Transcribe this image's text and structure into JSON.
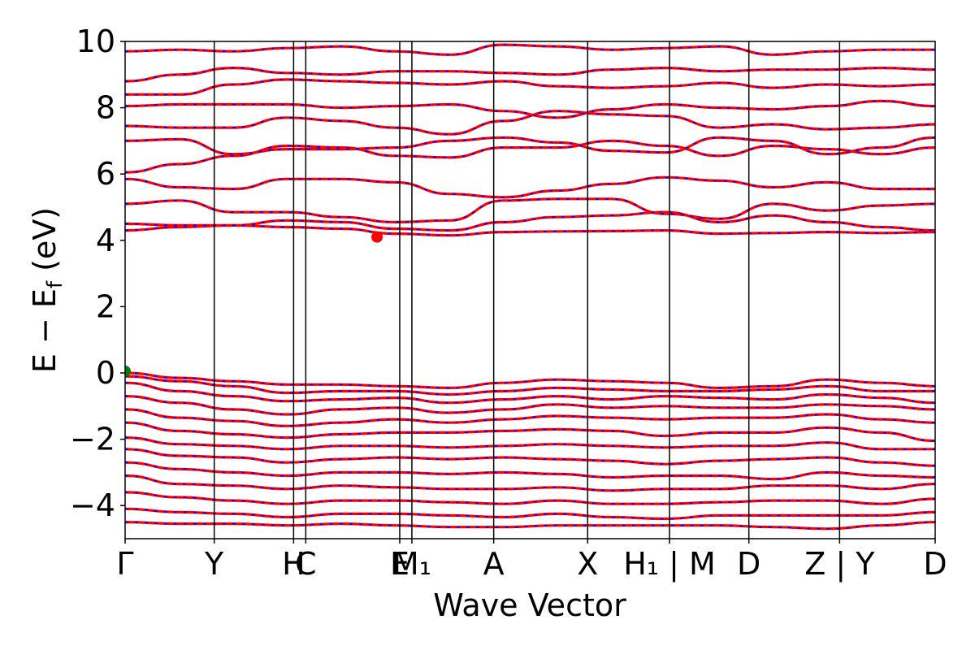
{
  "chart_data": {
    "type": "line",
    "title": "",
    "xlabel": "Wave Vector",
    "ylabel": "E − E_f (eV)",
    "ylabel_parts": {
      "main": "E − E",
      "sub": "f",
      "unit": " (eV)"
    },
    "ylim": [
      -5,
      10
    ],
    "yticks": [
      {
        "value": 10,
        "label": "10"
      },
      {
        "value": 8,
        "label": "8"
      },
      {
        "value": 6,
        "label": "6"
      },
      {
        "value": 4,
        "label": "4"
      },
      {
        "value": 2,
        "label": "2"
      },
      {
        "value": 0,
        "label": "0"
      },
      {
        "value": -2,
        "label": "−2"
      },
      {
        "value": -4,
        "label": "−4"
      }
    ],
    "xlim": [
      0,
      1
    ],
    "high_symmetry_points": [
      {
        "label": "Γ",
        "x": 0.0
      },
      {
        "label": "Y",
        "x": 0.11
      },
      {
        "label": "H",
        "x": 0.208
      },
      {
        "label": "C",
        "x": 0.223
      },
      {
        "label": "E",
        "x": 0.339
      },
      {
        "label": "M₁",
        "x": 0.354
      },
      {
        "label": "A",
        "x": 0.455
      },
      {
        "label": "X",
        "x": 0.571
      },
      {
        "label": "H₁ | M",
        "x": 0.672
      },
      {
        "label": "D",
        "x": 0.77
      },
      {
        "label": "Z | Y",
        "x": 0.882
      },
      {
        "label": "D",
        "x": 1.0
      }
    ],
    "grid": false,
    "series_colors": {
      "band": "#ff0000",
      "dash": "#0000ff"
    },
    "markers": [
      {
        "x": 0.0,
        "y": 0.05,
        "color": "#008000"
      },
      {
        "x": 0.311,
        "y": 4.1,
        "color": "#ff0000"
      }
    ],
    "conduction_bands": [
      [
        4.3,
        4.4,
        4.45,
        4.4,
        4.35,
        4.2,
        4.15,
        4.25,
        4.27,
        4.28,
        4.3,
        4.2,
        4.22,
        4.25,
        4.22,
        4.25
      ],
      [
        4.5,
        4.45,
        4.45,
        4.6,
        4.55,
        4.35,
        4.3,
        4.55,
        4.7,
        4.75,
        4.85,
        4.55,
        4.75,
        4.55,
        4.4,
        4.3
      ],
      [
        5.1,
        5.2,
        4.85,
        4.85,
        4.7,
        4.55,
        4.6,
        5.2,
        5.25,
        5.25,
        4.8,
        4.65,
        5.1,
        4.9,
        5.05,
        5.1
      ],
      [
        5.85,
        5.6,
        5.55,
        5.85,
        5.85,
        5.75,
        5.4,
        5.3,
        5.5,
        5.7,
        5.9,
        5.8,
        5.6,
        5.75,
        5.55,
        5.55
      ],
      [
        6.05,
        6.3,
        6.55,
        6.85,
        6.8,
        6.55,
        6.5,
        6.8,
        6.8,
        7.0,
        6.85,
        6.55,
        6.85,
        6.75,
        6.6,
        6.8
      ],
      [
        7.0,
        7.05,
        6.6,
        6.75,
        6.75,
        6.8,
        7.0,
        7.1,
        6.95,
        6.7,
        6.65,
        7.1,
        7.0,
        6.6,
        6.8,
        7.1
      ],
      [
        7.45,
        7.4,
        7.4,
        7.7,
        7.6,
        7.4,
        7.2,
        7.6,
        7.9,
        7.8,
        7.75,
        7.4,
        7.5,
        7.35,
        7.4,
        7.5
      ],
      [
        8.05,
        8.1,
        8.1,
        8.1,
        8.0,
        8.05,
        8.1,
        7.9,
        7.7,
        7.95,
        8.1,
        8.0,
        7.95,
        8.05,
        8.2,
        8.05
      ],
      [
        8.4,
        8.4,
        8.7,
        8.85,
        8.8,
        8.75,
        8.7,
        8.8,
        8.65,
        8.6,
        8.65,
        8.75,
        8.6,
        8.7,
        8.65,
        8.7
      ],
      [
        8.8,
        9.0,
        9.2,
        9.05,
        9.0,
        9.1,
        9.1,
        9.05,
        9.0,
        9.15,
        9.2,
        9.1,
        9.15,
        9.15,
        9.2,
        9.15
      ],
      [
        9.7,
        9.75,
        9.7,
        9.8,
        9.85,
        9.7,
        9.6,
        9.9,
        9.85,
        9.75,
        9.8,
        9.85,
        9.6,
        9.7,
        9.75,
        9.75
      ]
    ],
    "valence_bands": [
      [
        0.0,
        -0.15,
        -0.25,
        -0.35,
        -0.35,
        -0.4,
        -0.45,
        -0.3,
        -0.2,
        -0.25,
        -0.3,
        -0.45,
        -0.4,
        -0.2,
        -0.3,
        -0.4
      ],
      [
        -0.1,
        -0.25,
        -0.4,
        -0.6,
        -0.55,
        -0.55,
        -0.65,
        -0.55,
        -0.45,
        -0.5,
        -0.55,
        -0.55,
        -0.5,
        -0.4,
        -0.55,
        -0.55
      ],
      [
        -0.3,
        -0.55,
        -0.7,
        -0.85,
        -0.8,
        -0.75,
        -0.9,
        -0.8,
        -0.7,
        -0.8,
        -0.7,
        -0.75,
        -0.8,
        -0.65,
        -0.75,
        -0.9
      ],
      [
        -0.7,
        -0.9,
        -1.1,
        -1.25,
        -1.1,
        -1.05,
        -1.2,
        -1.1,
        -0.95,
        -1.05,
        -1.0,
        -1.05,
        -1.05,
        -0.95,
        -1.0,
        -1.1
      ],
      [
        -1.1,
        -1.35,
        -1.45,
        -1.6,
        -1.5,
        -1.4,
        -1.5,
        -1.4,
        -1.3,
        -1.35,
        -1.4,
        -1.35,
        -1.35,
        -1.25,
        -1.4,
        -1.5
      ],
      [
        -1.5,
        -1.75,
        -1.85,
        -1.95,
        -1.85,
        -1.8,
        -1.8,
        -1.75,
        -1.7,
        -1.75,
        -1.9,
        -1.8,
        -1.8,
        -1.65,
        -1.8,
        -2.05
      ],
      [
        -1.95,
        -2.15,
        -2.2,
        -2.3,
        -2.2,
        -2.2,
        -2.25,
        -2.2,
        -2.15,
        -2.2,
        -2.25,
        -2.2,
        -2.2,
        -2.1,
        -2.3,
        -2.3
      ],
      [
        -2.3,
        -2.5,
        -2.55,
        -2.7,
        -2.6,
        -2.55,
        -2.6,
        -2.55,
        -2.6,
        -2.65,
        -2.75,
        -2.65,
        -2.6,
        -2.55,
        -2.7,
        -2.8
      ],
      [
        -2.7,
        -2.9,
        -3.0,
        -3.1,
        -3.0,
        -3.0,
        -3.05,
        -3.0,
        -3.05,
        -3.15,
        -3.1,
        -3.1,
        -3.2,
        -3.0,
        -3.1,
        -3.15
      ],
      [
        -3.1,
        -3.35,
        -3.4,
        -3.5,
        -3.4,
        -3.45,
        -3.5,
        -3.5,
        -3.45,
        -3.55,
        -3.5,
        -3.5,
        -3.4,
        -3.4,
        -3.5,
        -3.35
      ],
      [
        -3.6,
        -3.75,
        -3.85,
        -3.95,
        -3.85,
        -3.85,
        -3.9,
        -3.95,
        -3.85,
        -3.95,
        -3.95,
        -3.9,
        -3.85,
        -3.85,
        -3.95,
        -3.8
      ],
      [
        -4.1,
        -4.2,
        -4.25,
        -4.35,
        -4.25,
        -4.25,
        -4.3,
        -4.35,
        -4.25,
        -4.35,
        -4.4,
        -4.3,
        -4.3,
        -4.3,
        -4.3,
        -4.2
      ],
      [
        -4.5,
        -4.55,
        -4.55,
        -4.6,
        -4.55,
        -4.6,
        -4.65,
        -4.65,
        -4.6,
        -4.6,
        -4.6,
        -4.6,
        -4.65,
        -4.7,
        -4.6,
        -4.5
      ]
    ]
  }
}
